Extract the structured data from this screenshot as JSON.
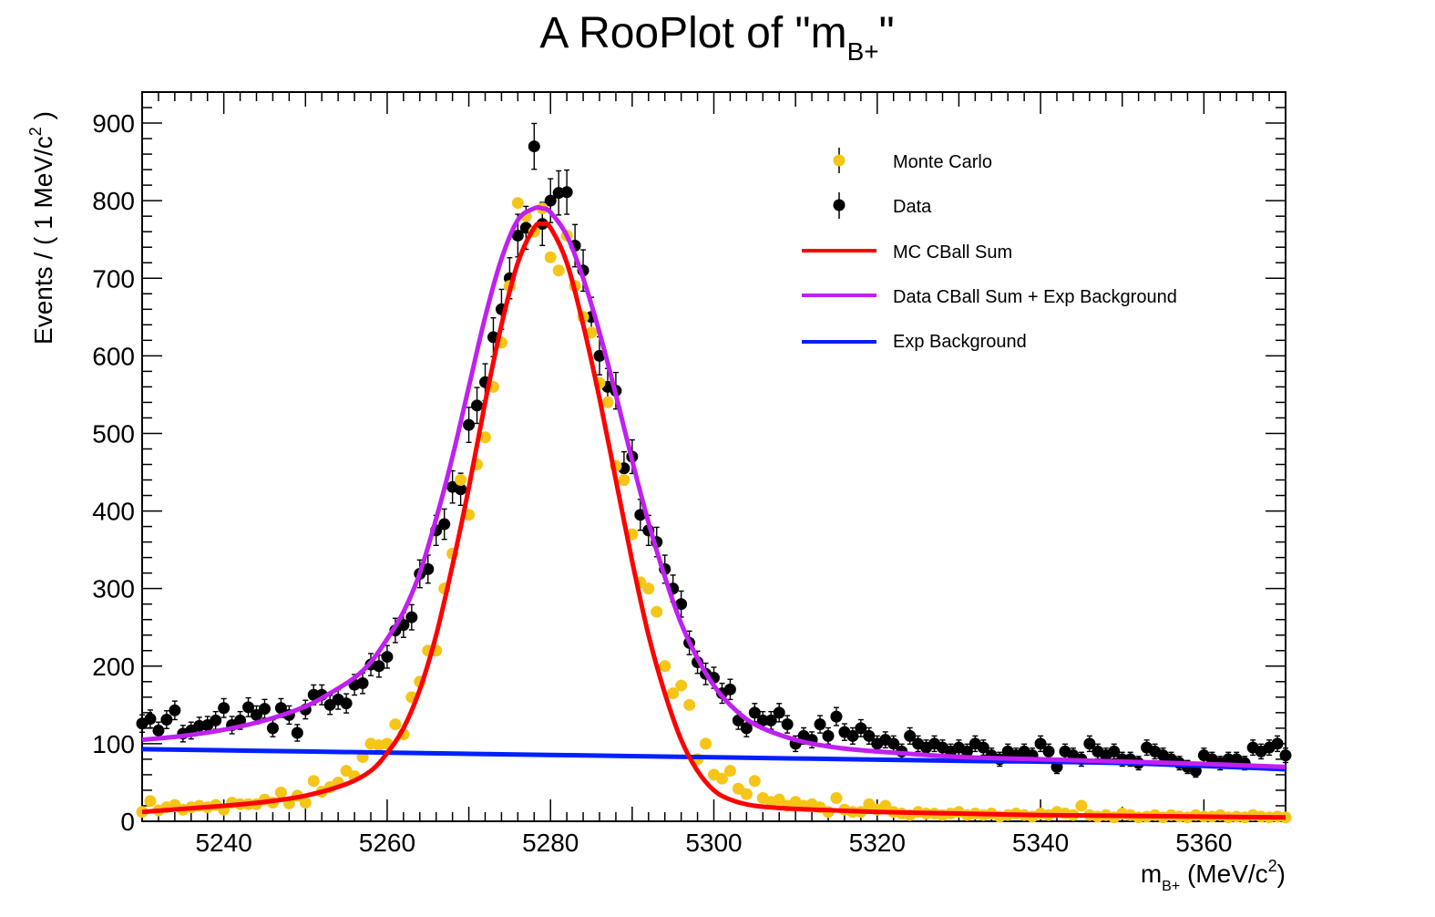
{
  "chart_data": {
    "type": "scatter",
    "title_main": "A RooPlot of \"m",
    "title_sub": "B+",
    "title_end": "\"",
    "ylabel_pre": "Events / ( 1 MeV/c",
    "ylabel_sup": "2",
    "ylabel_post": " )",
    "xlabel_pre": "m",
    "xlabel_sub": "B+",
    "xlabel_mid": " (MeV/c",
    "xlabel_sup": "2",
    "xlabel_post": ")",
    "xlim": [
      5230,
      5370
    ],
    "ylim": [
      0,
      940
    ],
    "x_ticks": [
      "5240",
      "5260",
      "5280",
      "5300",
      "5320",
      "5340",
      "5360"
    ],
    "y_ticks": [
      "0",
      "100",
      "200",
      "300",
      "400",
      "500",
      "600",
      "700",
      "800",
      "900"
    ],
    "legend_position": "top-right",
    "legend": [
      {
        "label": "Monte Carlo",
        "kind": "marker",
        "color": "#f5c518"
      },
      {
        "label": "Data",
        "kind": "marker",
        "color": "#000000"
      },
      {
        "label": "MC CBall Sum",
        "kind": "line",
        "color": "#ff0000"
      },
      {
        "label": "Data CBall Sum + Exp Background",
        "kind": "line",
        "color": "#c020f0"
      },
      {
        "label": "Exp Background",
        "kind": "line",
        "color": "#0020ff"
      }
    ],
    "series": [
      {
        "name": "Data",
        "kind": "points",
        "color": "#000000",
        "x": [
          5230,
          5231,
          5232,
          5233,
          5234,
          5235,
          5236,
          5237,
          5238,
          5239,
          5240,
          5241,
          5242,
          5243,
          5244,
          5245,
          5246,
          5247,
          5248,
          5249,
          5250,
          5251,
          5252,
          5253,
          5254,
          5255,
          5256,
          5257,
          5258,
          5259,
          5260,
          5261,
          5262,
          5263,
          5264,
          5265,
          5266,
          5267,
          5268,
          5269,
          5270,
          5271,
          5272,
          5273,
          5274,
          5275,
          5276,
          5277,
          5278,
          5279,
          5280,
          5281,
          5282,
          5283,
          5284,
          5285,
          5286,
          5287,
          5288,
          5289,
          5290,
          5291,
          5292,
          5293,
          5294,
          5295,
          5296,
          5297,
          5298,
          5299,
          5300,
          5301,
          5302,
          5303,
          5304,
          5305,
          5306,
          5307,
          5308,
          5309,
          5310,
          5311,
          5312,
          5313,
          5314,
          5315,
          5316,
          5317,
          5318,
          5319,
          5320,
          5321,
          5322,
          5323,
          5324,
          5325,
          5326,
          5327,
          5328,
          5329,
          5330,
          5331,
          5332,
          5333,
          5334,
          5335,
          5336,
          5337,
          5338,
          5339,
          5340,
          5341,
          5342,
          5343,
          5344,
          5345,
          5346,
          5347,
          5348,
          5349,
          5350,
          5351,
          5352,
          5353,
          5354,
          5355,
          5356,
          5357,
          5358,
          5359,
          5360,
          5361,
          5362,
          5363,
          5364,
          5365,
          5366,
          5367,
          5368,
          5369,
          5370
        ],
        "y": [
          126,
          132,
          117,
          131,
          143,
          113,
          117,
          123,
          124,
          130,
          146,
          124,
          130,
          147,
          137,
          145,
          120,
          146,
          137,
          114,
          144,
          163,
          163,
          150,
          157,
          152,
          176,
          178,
          202,
          200,
          212,
          246,
          253,
          263,
          319,
          325,
          375,
          383,
          431,
          428,
          511,
          536,
          566,
          624,
          660,
          700,
          755,
          765,
          870,
          770,
          800,
          810,
          811,
          742,
          710,
          650,
          600,
          560,
          555,
          455,
          470,
          395,
          375,
          360,
          325,
          300,
          280,
          230,
          205,
          190,
          185,
          165,
          170,
          130,
          120,
          140,
          130,
          130,
          140,
          125,
          100,
          110,
          105,
          125,
          110,
          135,
          115,
          110,
          120,
          110,
          100,
          105,
          100,
          90,
          110,
          100,
          95,
          100,
          95,
          90,
          95,
          90,
          100,
          95,
          85,
          80,
          90,
          85,
          90,
          85,
          100,
          90,
          70,
          90,
          85,
          80,
          100,
          90,
          85,
          90,
          80,
          80,
          75,
          95,
          90,
          85,
          80,
          75,
          70,
          65,
          85,
          80,
          75,
          80,
          80,
          75,
          95,
          90,
          95,
          100,
          85
        ]
      },
      {
        "name": "Monte Carlo",
        "kind": "points",
        "color": "#f5c518",
        "x": [
          5230,
          5231,
          5232,
          5233,
          5234,
          5235,
          5236,
          5237,
          5238,
          5239,
          5240,
          5241,
          5242,
          5243,
          5244,
          5245,
          5246,
          5247,
          5248,
          5249,
          5250,
          5251,
          5252,
          5253,
          5254,
          5255,
          5256,
          5257,
          5258,
          5259,
          5260,
          5261,
          5262,
          5263,
          5264,
          5265,
          5266,
          5267,
          5268,
          5269,
          5270,
          5271,
          5272,
          5273,
          5274,
          5275,
          5276,
          5277,
          5278,
          5279,
          5280,
          5281,
          5282,
          5283,
          5284,
          5285,
          5286,
          5287,
          5288,
          5289,
          5290,
          5291,
          5292,
          5293,
          5294,
          5295,
          5296,
          5297,
          5298,
          5299,
          5300,
          5301,
          5302,
          5303,
          5304,
          5305,
          5306,
          5307,
          5308,
          5309,
          5310,
          5311,
          5312,
          5313,
          5314,
          5315,
          5316,
          5317,
          5318,
          5319,
          5320,
          5321,
          5322,
          5323,
          5324,
          5325,
          5326,
          5327,
          5328,
          5329,
          5330,
          5331,
          5332,
          5333,
          5334,
          5335,
          5336,
          5337,
          5338,
          5339,
          5340,
          5341,
          5342,
          5343,
          5344,
          5345,
          5346,
          5347,
          5348,
          5349,
          5350,
          5351,
          5352,
          5353,
          5354,
          5355,
          5356,
          5357,
          5358,
          5359,
          5360,
          5361,
          5362,
          5363,
          5364,
          5365,
          5366,
          5367,
          5368,
          5369,
          5370
        ],
        "y": [
          12,
          26,
          14,
          18,
          21,
          15,
          18,
          20,
          18,
          21,
          15,
          24,
          22,
          22,
          22,
          28,
          24,
          37,
          23,
          33,
          24,
          52,
          38,
          44,
          50,
          65,
          58,
          83,
          100,
          98,
          100,
          125,
          112,
          160,
          180,
          220,
          220,
          300,
          345,
          440,
          395,
          460,
          495,
          560,
          617,
          690,
          797,
          780,
          760,
          790,
          727,
          710,
          755,
          690,
          650,
          630,
          565,
          540,
          458,
          440,
          370,
          308,
          300,
          270,
          200,
          165,
          175,
          150,
          80,
          100,
          60,
          55,
          65,
          42,
          35,
          52,
          30,
          25,
          28,
          20,
          25,
          20,
          22,
          18,
          12,
          30,
          15,
          12,
          12,
          22,
          15,
          20,
          12,
          10,
          8,
          12,
          10,
          10,
          8,
          10,
          12,
          8,
          10,
          8,
          10,
          6,
          8,
          10,
          8,
          6,
          10,
          8,
          12,
          10,
          8,
          20,
          8,
          6,
          8,
          5,
          10,
          8,
          5,
          6,
          8,
          5,
          8,
          6,
          5,
          8,
          6,
          6,
          8,
          5,
          6,
          5,
          8,
          6,
          5,
          6,
          5
        ]
      },
      {
        "name": "MC CBall Sum",
        "kind": "curve",
        "color": "#ff0000",
        "x": [
          5230,
          5235,
          5240,
          5245,
          5250,
          5255,
          5258,
          5260,
          5262,
          5264,
          5266,
          5268,
          5270,
          5272,
          5274,
          5276,
          5278,
          5279,
          5280,
          5282,
          5284,
          5286,
          5288,
          5290,
          5292,
          5294,
          5296,
          5298,
          5300,
          5302,
          5305,
          5310,
          5315,
          5320,
          5330,
          5340,
          5350,
          5360,
          5370
        ],
        "y": [
          12,
          16,
          20,
          25,
          33,
          48,
          65,
          88,
          120,
          170,
          240,
          330,
          430,
          540,
          640,
          720,
          765,
          770,
          765,
          720,
          640,
          545,
          440,
          335,
          240,
          165,
          105,
          65,
          40,
          28,
          20,
          16,
          14,
          12,
          10,
          8,
          7,
          6,
          5
        ]
      },
      {
        "name": "Data CBall Sum + Exp Background",
        "kind": "curve",
        "color": "#c020f0",
        "x": [
          5230,
          5235,
          5240,
          5245,
          5250,
          5253,
          5256,
          5258,
          5260,
          5262,
          5264,
          5266,
          5268,
          5270,
          5272,
          5274,
          5276,
          5278,
          5279,
          5280,
          5282,
          5284,
          5286,
          5288,
          5290,
          5292,
          5294,
          5296,
          5298,
          5300,
          5302,
          5305,
          5310,
          5315,
          5320,
          5330,
          5340,
          5350,
          5360,
          5370
        ],
        "y": [
          105,
          110,
          118,
          130,
          148,
          165,
          185,
          205,
          235,
          270,
          320,
          390,
          470,
          560,
          650,
          725,
          775,
          790,
          790,
          785,
          755,
          700,
          630,
          550,
          465,
          385,
          315,
          255,
          210,
          175,
          150,
          125,
          105,
          95,
          90,
          83,
          80,
          77,
          74,
          70
        ]
      },
      {
        "name": "Exp Background",
        "kind": "curve",
        "color": "#0020ff",
        "x": [
          5230,
          5250,
          5270,
          5290,
          5310,
          5330,
          5350,
          5370
        ],
        "y": [
          93,
          90,
          87,
          84,
          81,
          78,
          75,
          67
        ]
      }
    ]
  }
}
